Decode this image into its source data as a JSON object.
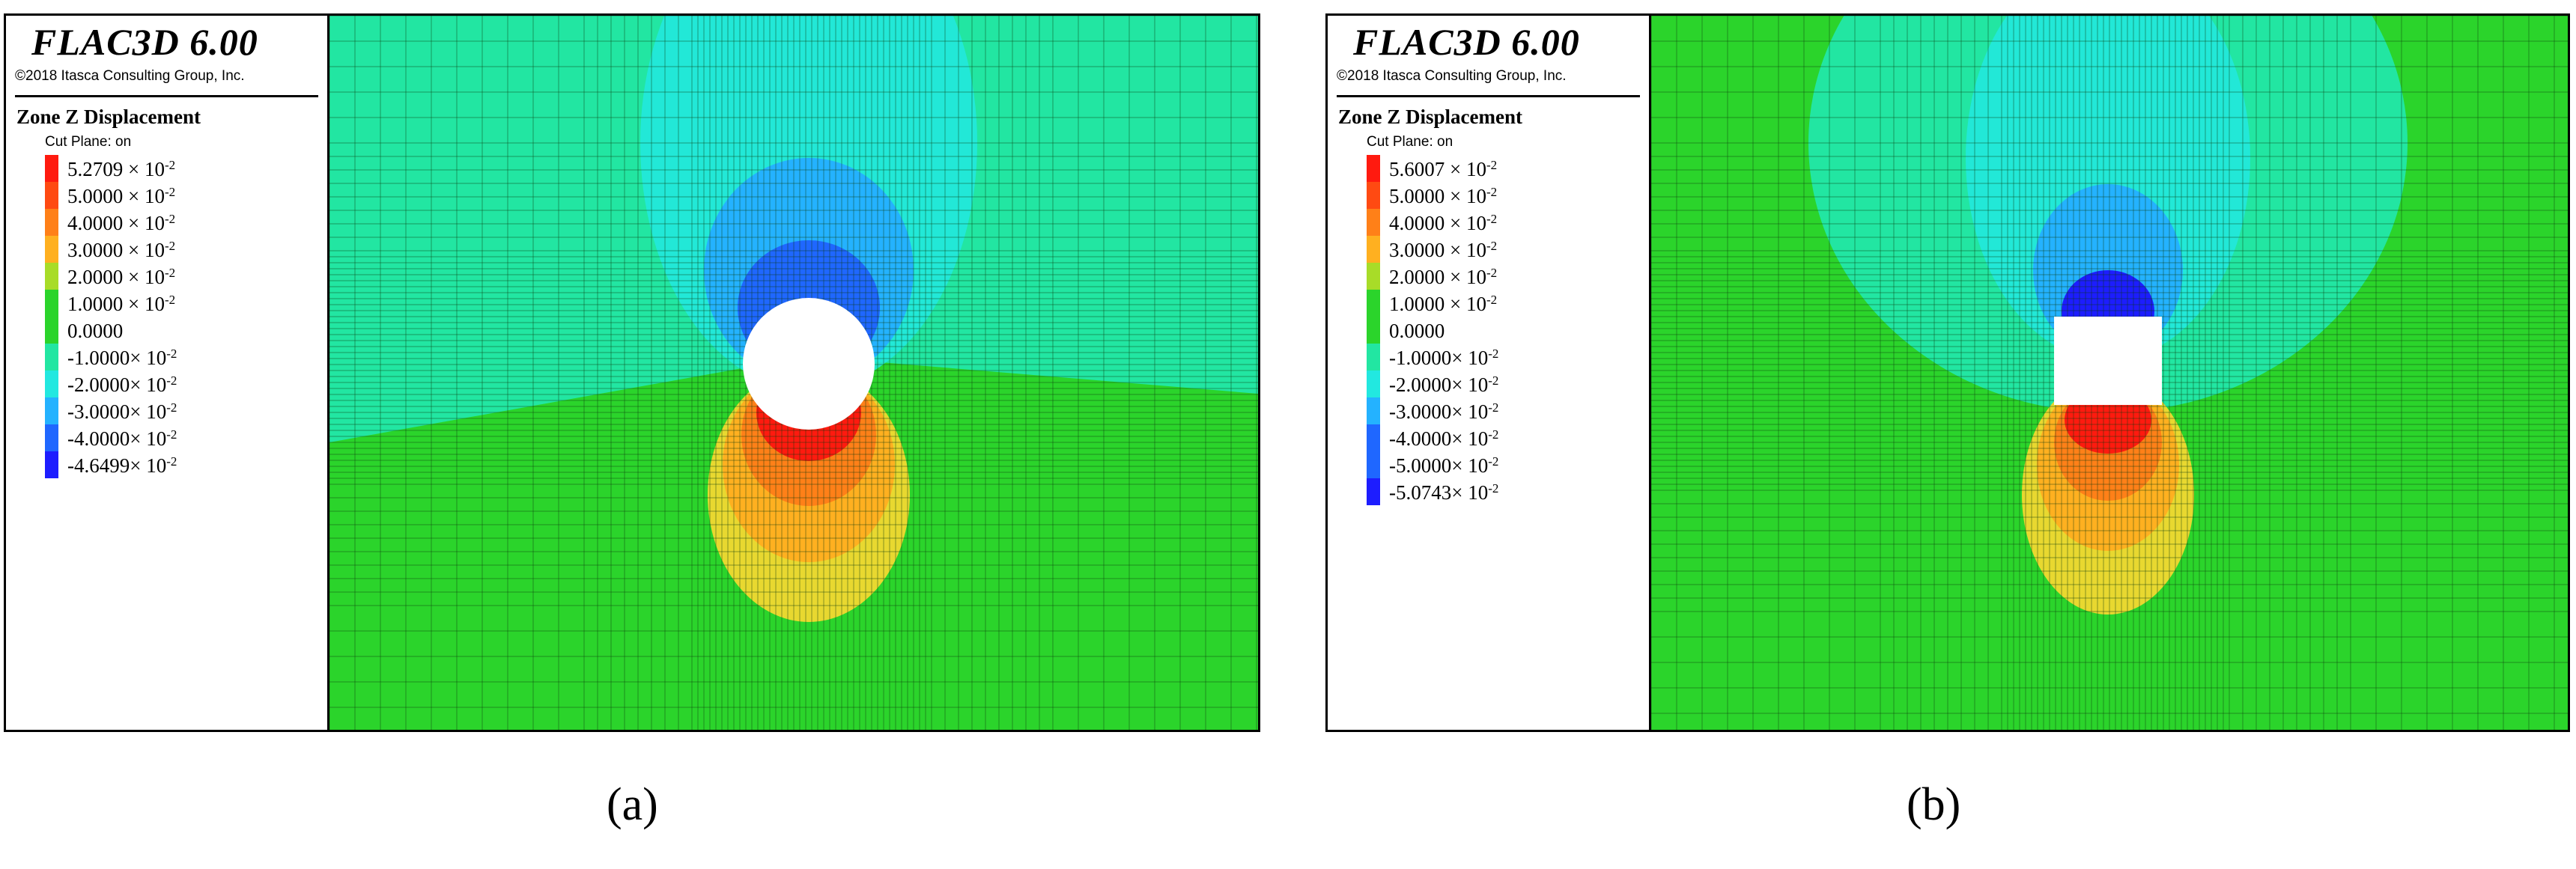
{
  "colors": {
    "red": "#ff1a0f",
    "red_orange": "#ff4a12",
    "orange": "#ff8018",
    "yellow_orange": "#ffb020",
    "yellow": "#e8d830",
    "yellow_green": "#a8dc28",
    "green": "#2bd42b",
    "teal": "#22e6a2",
    "cyan": "#22e8e0",
    "light_blue": "#24b2ff",
    "blue": "#1f67ff",
    "dark_blue": "#1d1dff",
    "mesh_line": "#0a3a0a"
  },
  "panels": [
    {
      "app_title": "FLAC3D 6.00",
      "copyright": "©2018 Itasca Consulting Group, Inc.",
      "legend_title": "Zone Z Displacement",
      "cut_plane": "Cut Plane: on",
      "opening": "circle",
      "caption": "(a)",
      "scale": [
        {
          "mantissa": "5.2709 × 10",
          "exp": "-2",
          "color": "red"
        },
        {
          "mantissa": "5.0000 × 10",
          "exp": "-2",
          "color": "red_orange"
        },
        {
          "mantissa": "4.0000 × 10",
          "exp": "-2",
          "color": "orange"
        },
        {
          "mantissa": "3.0000 × 10",
          "exp": "-2",
          "color": "yellow_orange"
        },
        {
          "mantissa": "2.0000 × 10",
          "exp": "-2",
          "color": "yellow_green"
        },
        {
          "mantissa": "1.0000 × 10",
          "exp": "-2",
          "color": "green"
        },
        {
          "mantissa": "0.0000",
          "exp": "",
          "color": "green"
        },
        {
          "mantissa": "-1.0000× 10",
          "exp": "-2",
          "color": "teal"
        },
        {
          "mantissa": "-2.0000× 10",
          "exp": "-2",
          "color": "cyan"
        },
        {
          "mantissa": "-3.0000× 10",
          "exp": "-2",
          "color": "light_blue"
        },
        {
          "mantissa": "-4.0000× 10",
          "exp": "-2",
          "color": "blue"
        },
        {
          "mantissa": "-4.6499× 10",
          "exp": "-2",
          "color": "dark_blue"
        }
      ]
    },
    {
      "app_title": "FLAC3D 6.00",
      "copyright": "©2018 Itasca Consulting Group, Inc.",
      "legend_title": "Zone Z Displacement",
      "cut_plane": "Cut Plane: on",
      "opening": "rectangle",
      "caption": "(b)",
      "scale": [
        {
          "mantissa": "5.6007 × 10",
          "exp": "-2",
          "color": "red"
        },
        {
          "mantissa": "5.0000 × 10",
          "exp": "-2",
          "color": "red_orange"
        },
        {
          "mantissa": "4.0000 × 10",
          "exp": "-2",
          "color": "orange"
        },
        {
          "mantissa": "3.0000 × 10",
          "exp": "-2",
          "color": "yellow_orange"
        },
        {
          "mantissa": "2.0000 × 10",
          "exp": "-2",
          "color": "yellow_green"
        },
        {
          "mantissa": "1.0000 × 10",
          "exp": "-2",
          "color": "green"
        },
        {
          "mantissa": "0.0000",
          "exp": "",
          "color": "green"
        },
        {
          "mantissa": "-1.0000× 10",
          "exp": "-2",
          "color": "teal"
        },
        {
          "mantissa": "-2.0000× 10",
          "exp": "-2",
          "color": "cyan"
        },
        {
          "mantissa": "-3.0000× 10",
          "exp": "-2",
          "color": "light_blue"
        },
        {
          "mantissa": "-4.0000× 10",
          "exp": "-2",
          "color": "blue"
        },
        {
          "mantissa": "-5.0000× 10",
          "exp": "-2",
          "color": "blue"
        },
        {
          "mantissa": "-5.0743× 10",
          "exp": "-2",
          "color": "dark_blue"
        }
      ]
    }
  ]
}
